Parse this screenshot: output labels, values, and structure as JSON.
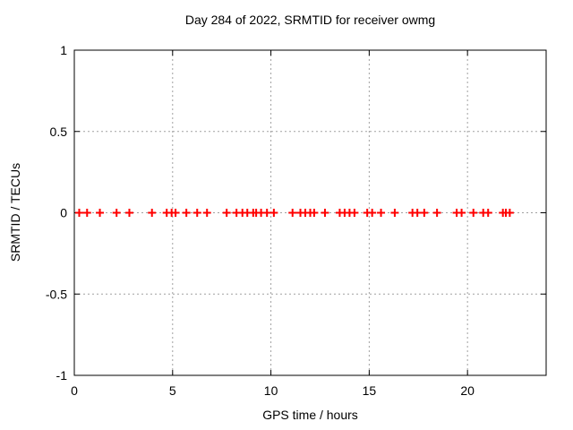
{
  "window": {
    "background_color": "#ffffff"
  },
  "chart_data": {
    "type": "scatter",
    "title": "Day 284 of 2022, SRMTID for receiver owmg",
    "xlabel": "GPS time / hours",
    "ylabel": "SRMTID / TECUs",
    "xlim": [
      0,
      24
    ],
    "ylim": [
      -1,
      1
    ],
    "xticks": [
      0,
      5,
      10,
      15,
      20
    ],
    "xtick_labels": [
      "0",
      "5",
      "10",
      "15",
      "20"
    ],
    "yticks": [
      1,
      0.5,
      0,
      -0.5,
      -1
    ],
    "ytick_labels": [
      "1",
      "0.5",
      "0",
      "-0.5",
      "-1"
    ],
    "grid": true,
    "grid_xticks": [
      5,
      10,
      15,
      20
    ],
    "grid_yticks": [
      0.5,
      0,
      -0.5
    ],
    "grid_color": "#a0a0a0",
    "border_color": "#000000",
    "legend": "none",
    "marker": "plus",
    "marker_color": "#ff0000",
    "series": [
      {
        "name": "SRMTID",
        "x": [
          0.25,
          0.65,
          1.3,
          2.15,
          2.8,
          3.95,
          4.7,
          4.95,
          5.15,
          5.7,
          6.25,
          6.75,
          7.75,
          8.25,
          8.55,
          8.8,
          9.1,
          9.25,
          9.5,
          9.8,
          10.15,
          11.1,
          11.5,
          11.75,
          12.0,
          12.2,
          12.75,
          13.5,
          13.75,
          14.0,
          14.25,
          14.9,
          15.15,
          15.6,
          16.3,
          17.2,
          17.45,
          17.8,
          18.45,
          19.45,
          19.7,
          20.3,
          20.8,
          21.05,
          21.8,
          21.95,
          22.15
        ],
        "y": [
          0,
          0,
          0,
          0,
          0,
          0,
          0,
          0,
          0,
          0,
          0,
          0,
          0,
          0,
          0,
          0,
          0,
          0,
          0,
          0,
          0,
          0,
          0,
          0,
          0,
          0,
          0,
          0,
          0,
          0,
          0,
          0,
          0,
          0,
          0,
          0,
          0,
          0,
          0,
          0,
          0,
          0,
          0,
          0,
          0,
          0,
          0
        ]
      }
    ]
  }
}
